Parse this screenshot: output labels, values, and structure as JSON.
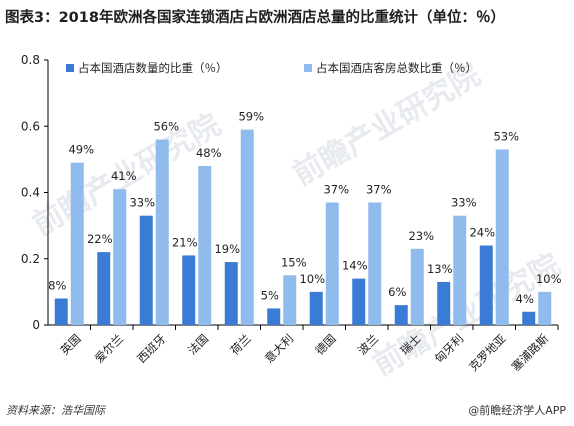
{
  "title": "图表3：2018年欧洲各国家连锁酒店占欧洲酒店总量的比重统计（单位：％）",
  "source": "资料来源：浩华国际",
  "brand": "@前瞻经济学人APP",
  "watermark": "前瞻产业研究院",
  "colors": {
    "series1": "#3a7bd5",
    "series2": "#8fbcec",
    "axis": "#000000",
    "text": "#222222"
  },
  "chart_data": {
    "type": "bar",
    "categories": [
      "英国",
      "爱尔兰",
      "西班牙",
      "法国",
      "荷兰",
      "意大利",
      "德国",
      "波兰",
      "瑞士",
      "匈牙利",
      "克罗地亚",
      "塞浦路斯"
    ],
    "series": [
      {
        "name": "占本国酒店数量的比重（％）",
        "values": [
          0.08,
          0.22,
          0.33,
          0.21,
          0.19,
          0.05,
          0.1,
          0.14,
          0.06,
          0.13,
          0.24,
          0.04
        ],
        "labels": [
          "8%",
          "22%",
          "33%",
          "21%",
          "19%",
          "5%",
          "10%",
          "14%",
          "6%",
          "13%",
          "24%",
          "4%"
        ]
      },
      {
        "name": "占本国酒店客房总数比重（％）",
        "values": [
          0.49,
          0.41,
          0.56,
          0.48,
          0.59,
          0.15,
          0.37,
          0.37,
          0.23,
          0.33,
          0.53,
          0.1
        ],
        "labels": [
          "49%",
          "41%",
          "56%",
          "48%",
          "59%",
          "15%",
          "37%",
          "37%",
          "23%",
          "33%",
          "53%",
          "10%"
        ]
      }
    ],
    "ylim": [
      0,
      0.8
    ],
    "yticks": [
      "0",
      "0.2",
      "0.4",
      "0.6",
      "0.8"
    ],
    "legend": "top-left",
    "grid": false
  }
}
